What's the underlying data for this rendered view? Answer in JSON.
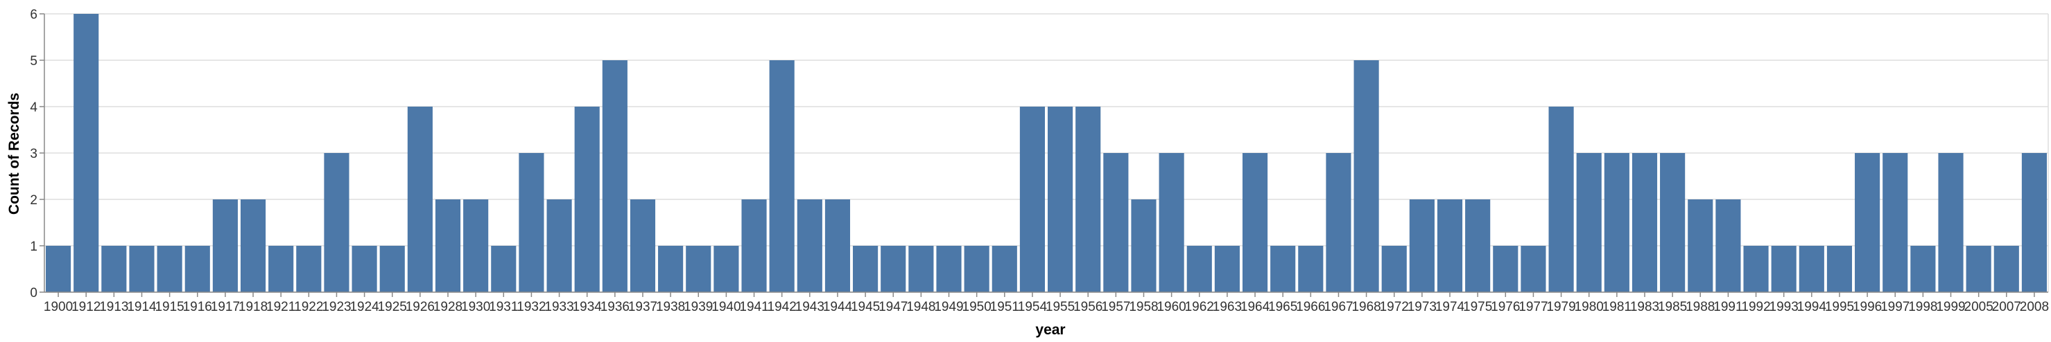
{
  "chart_data": {
    "type": "bar",
    "xlabel": "year",
    "ylabel": "Count of Records",
    "ylim": [
      0,
      6
    ],
    "yticks": [
      0,
      1,
      2,
      3,
      4,
      5,
      6
    ],
    "grid": true,
    "color": "#4c78a8",
    "categories": [
      "1900",
      "1912",
      "1913",
      "1914",
      "1915",
      "1916",
      "1917",
      "1918",
      "1921",
      "1922",
      "1923",
      "1924",
      "1925",
      "1926",
      "1928",
      "1930",
      "1931",
      "1932",
      "1933",
      "1934",
      "1936",
      "1937",
      "1938",
      "1939",
      "1940",
      "1941",
      "1942",
      "1943",
      "1944",
      "1945",
      "1947",
      "1948",
      "1949",
      "1950",
      "1951",
      "1954",
      "1955",
      "1956",
      "1957",
      "1958",
      "1960",
      "1962",
      "1963",
      "1964",
      "1965",
      "1966",
      "1967",
      "1968",
      "1972",
      "1973",
      "1974",
      "1975",
      "1976",
      "1977",
      "1979",
      "1980",
      "1981",
      "1983",
      "1985",
      "1988",
      "1991",
      "1992",
      "1993",
      "1994",
      "1995",
      "1996",
      "1997",
      "1998",
      "1999",
      "2005",
      "2007",
      "2008"
    ],
    "values": [
      1,
      6,
      1,
      1,
      1,
      1,
      2,
      2,
      1,
      1,
      3,
      1,
      1,
      4,
      2,
      2,
      1,
      3,
      2,
      4,
      5,
      2,
      1,
      1,
      1,
      2,
      5,
      2,
      2,
      1,
      1,
      1,
      1,
      1,
      1,
      4,
      4,
      4,
      3,
      2,
      3,
      1,
      1,
      3,
      1,
      1,
      3,
      5,
      1,
      2,
      2,
      2,
      1,
      1,
      4,
      3,
      3,
      3,
      3,
      2,
      2,
      1,
      1,
      1,
      1,
      3,
      3,
      1,
      3,
      1,
      1,
      3
    ]
  }
}
